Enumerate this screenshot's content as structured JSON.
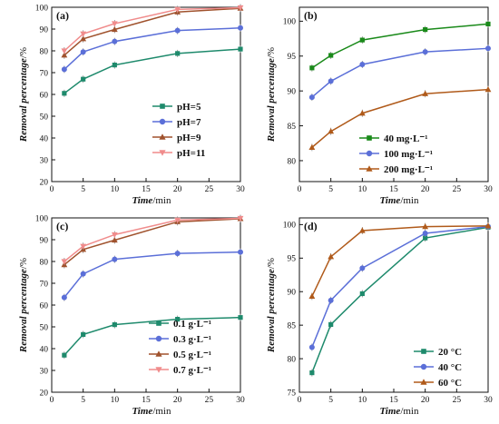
{
  "chart_data": [
    {
      "type": "line",
      "panel_label": "(a)",
      "xlabel_italic": "Time",
      "xlabel_unit": "/min",
      "ylabel_italic": "Removal percentage",
      "ylabel_unit": "/%",
      "xlim": [
        0,
        30
      ],
      "ylim": [
        20,
        100
      ],
      "xticks": [
        0,
        5,
        10,
        15,
        20,
        25,
        30
      ],
      "yticks": [
        20,
        30,
        40,
        50,
        60,
        70,
        80,
        90,
        100
      ],
      "legend_position": "bottom-right",
      "x": [
        2,
        5,
        10,
        20,
        30
      ],
      "series": [
        {
          "name": "pH=5",
          "color": "#1e8a6c",
          "marker": "square",
          "values": [
            60.5,
            67,
            73.5,
            78.8,
            80.8
          ]
        },
        {
          "name": "pH=7",
          "color": "#5b6fd8",
          "marker": "circle",
          "values": [
            71.5,
            79.5,
            84.3,
            89.3,
            90.5
          ]
        },
        {
          "name": "pH=9",
          "color": "#a0522d",
          "marker": "triangle",
          "values": [
            78,
            85.5,
            89.8,
            97.8,
            99.5
          ]
        },
        {
          "name": "pH=11",
          "color": "#f08c8c",
          "marker": "inverted-triangle",
          "values": [
            80,
            87.8,
            92.5,
            99,
            99.8
          ]
        }
      ]
    },
    {
      "type": "line",
      "panel_label": "(b)",
      "xlabel_italic": "Time",
      "xlabel_unit": "/min",
      "ylabel_italic": "Removal percentage",
      "ylabel_unit": "/%",
      "xlim": [
        0,
        30
      ],
      "ylim": [
        77,
        102
      ],
      "xticks": [
        0,
        5,
        10,
        15,
        20,
        25,
        30
      ],
      "yticks": [
        80,
        85,
        90,
        95,
        100
      ],
      "legend_position": "bottom-right",
      "x": [
        2,
        5,
        10,
        20,
        30
      ],
      "series": [
        {
          "name": "40 mg·L⁻¹",
          "color": "#1a8a1a",
          "marker": "square",
          "values": [
            93.3,
            95.1,
            97.3,
            98.8,
            99.6
          ]
        },
        {
          "name": "100 mg·L⁻¹",
          "color": "#5b6fd8",
          "marker": "circle",
          "values": [
            89.1,
            91.4,
            93.8,
            95.6,
            96.1
          ]
        },
        {
          "name": "200 mg·L⁻¹",
          "color": "#b05a1a",
          "marker": "triangle",
          "values": [
            81.9,
            84.2,
            86.8,
            89.6,
            90.2
          ]
        }
      ]
    },
    {
      "type": "line",
      "panel_label": "(c)",
      "xlabel_italic": "Time",
      "xlabel_unit": "/min",
      "ylabel_italic": "Removal percentage",
      "ylabel_unit": "/%",
      "xlim": [
        0,
        30
      ],
      "ylim": [
        20,
        100
      ],
      "xticks": [
        0,
        5,
        10,
        15,
        20,
        25,
        30
      ],
      "yticks": [
        20,
        30,
        40,
        50,
        60,
        70,
        80,
        90,
        100
      ],
      "legend_position": "bottom-right",
      "x": [
        2,
        5,
        10,
        20,
        30
      ],
      "series": [
        {
          "name": "0.1 g·L⁻¹",
          "color": "#1e8a6c",
          "marker": "square",
          "values": [
            37,
            46.5,
            51,
            53.5,
            54.3
          ]
        },
        {
          "name": "0.3 g·L⁻¹",
          "color": "#5b6fd8",
          "marker": "circle",
          "values": [
            63.5,
            74.3,
            81,
            83.7,
            84.3
          ]
        },
        {
          "name": "0.5 g·L⁻¹",
          "color": "#a0522d",
          "marker": "triangle",
          "values": [
            78.5,
            85.5,
            89.8,
            98.2,
            99.6
          ]
        },
        {
          "name": "0.7 g·L⁻¹",
          "color": "#f08c8c",
          "marker": "inverted-triangle",
          "values": [
            80,
            87,
            92.3,
            99,
            99.8
          ]
        }
      ]
    },
    {
      "type": "line",
      "panel_label": "(d)",
      "xlabel_italic": "Time",
      "xlabel_unit": "/min",
      "ylabel_italic": "Removal percentage",
      "ylabel_unit": "/%",
      "xlim": [
        0,
        30
      ],
      "ylim": [
        75,
        101
      ],
      "xticks": [
        0,
        5,
        10,
        15,
        20,
        25,
        30
      ],
      "yticks": [
        75,
        80,
        85,
        90,
        95,
        100
      ],
      "legend_position": "bottom-right",
      "x": [
        2,
        5,
        10,
        20,
        30
      ],
      "series": [
        {
          "name": "20 °C",
          "color": "#1e8a6c",
          "marker": "square",
          "values": [
            77.9,
            85.1,
            89.7,
            98,
            99.6
          ]
        },
        {
          "name": "40 °C",
          "color": "#5b6fd8",
          "marker": "circle",
          "values": [
            81.7,
            88.7,
            93.5,
            98.7,
            99.7
          ]
        },
        {
          "name": "60 °C",
          "color": "#b05a1a",
          "marker": "triangle",
          "values": [
            89.3,
            95.2,
            99.1,
            99.7,
            99.8
          ]
        }
      ]
    }
  ]
}
